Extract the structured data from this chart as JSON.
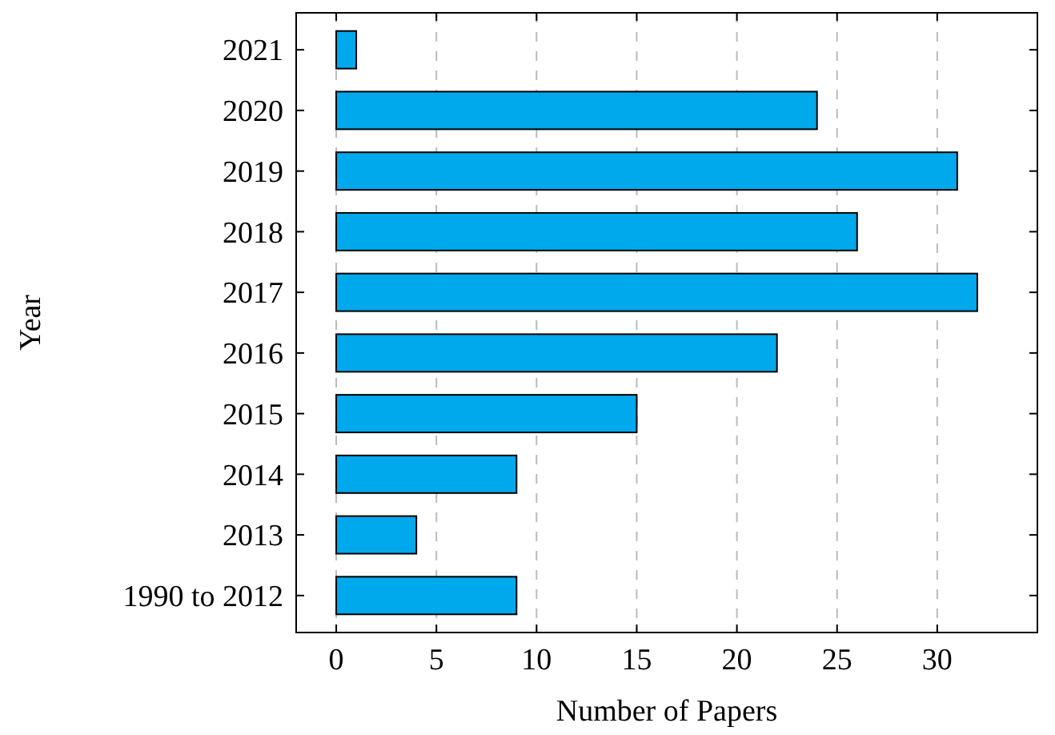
{
  "chart_data": {
    "type": "bar",
    "orientation": "horizontal",
    "xlabel": "Number of Papers",
    "ylabel": "Year",
    "categories": [
      "2021",
      "2020",
      "2019",
      "2018",
      "2017",
      "2016",
      "2015",
      "2014",
      "2013",
      "1990 to 2012"
    ],
    "values": [
      1,
      24,
      31,
      26,
      32,
      22,
      15,
      9,
      4,
      9
    ],
    "color": "#00a8ec",
    "xlim": [
      -2,
      35
    ],
    "xticks": [
      0,
      5,
      10,
      15,
      20,
      25,
      30
    ],
    "grid": "x"
  }
}
